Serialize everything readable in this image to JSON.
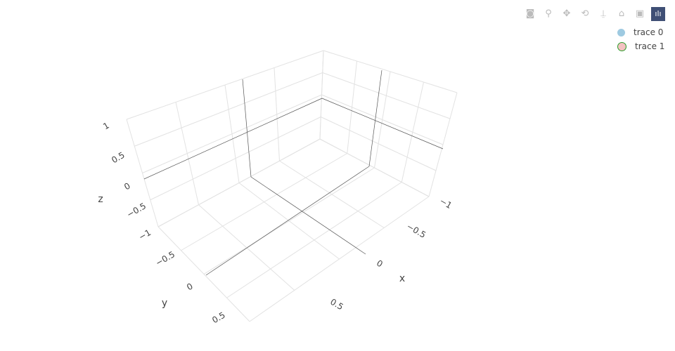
{
  "chart_data": {
    "type": "scatter3d",
    "title": "",
    "axes": {
      "x": {
        "title": "x",
        "range": [
          -1,
          1
        ],
        "ticks": [
          "−1",
          "−0.5",
          "0",
          "0.5"
        ]
      },
      "y": {
        "title": "y",
        "range": [
          -1,
          1
        ],
        "ticks": [
          "−0.5",
          "0",
          "0.5"
        ]
      },
      "z": {
        "title": "z",
        "range": [
          -1,
          1
        ],
        "ticks": [
          "1",
          "0.5",
          "0",
          "−0.5",
          "−1"
        ]
      }
    },
    "grid": true,
    "series": [
      {
        "name": "trace 0",
        "color": "#9ecae1",
        "values": []
      },
      {
        "name": "trace 1",
        "color": "#f4c2c2",
        "border": "#2ca02c",
        "values": []
      }
    ],
    "legend_placement": "top-right"
  },
  "modebar": [
    "camera-icon",
    "zoom-icon",
    "pan-icon",
    "orbit-icon",
    "turntable-icon",
    "home-icon",
    "reset-camera-icon",
    "plotly-logo-icon"
  ]
}
